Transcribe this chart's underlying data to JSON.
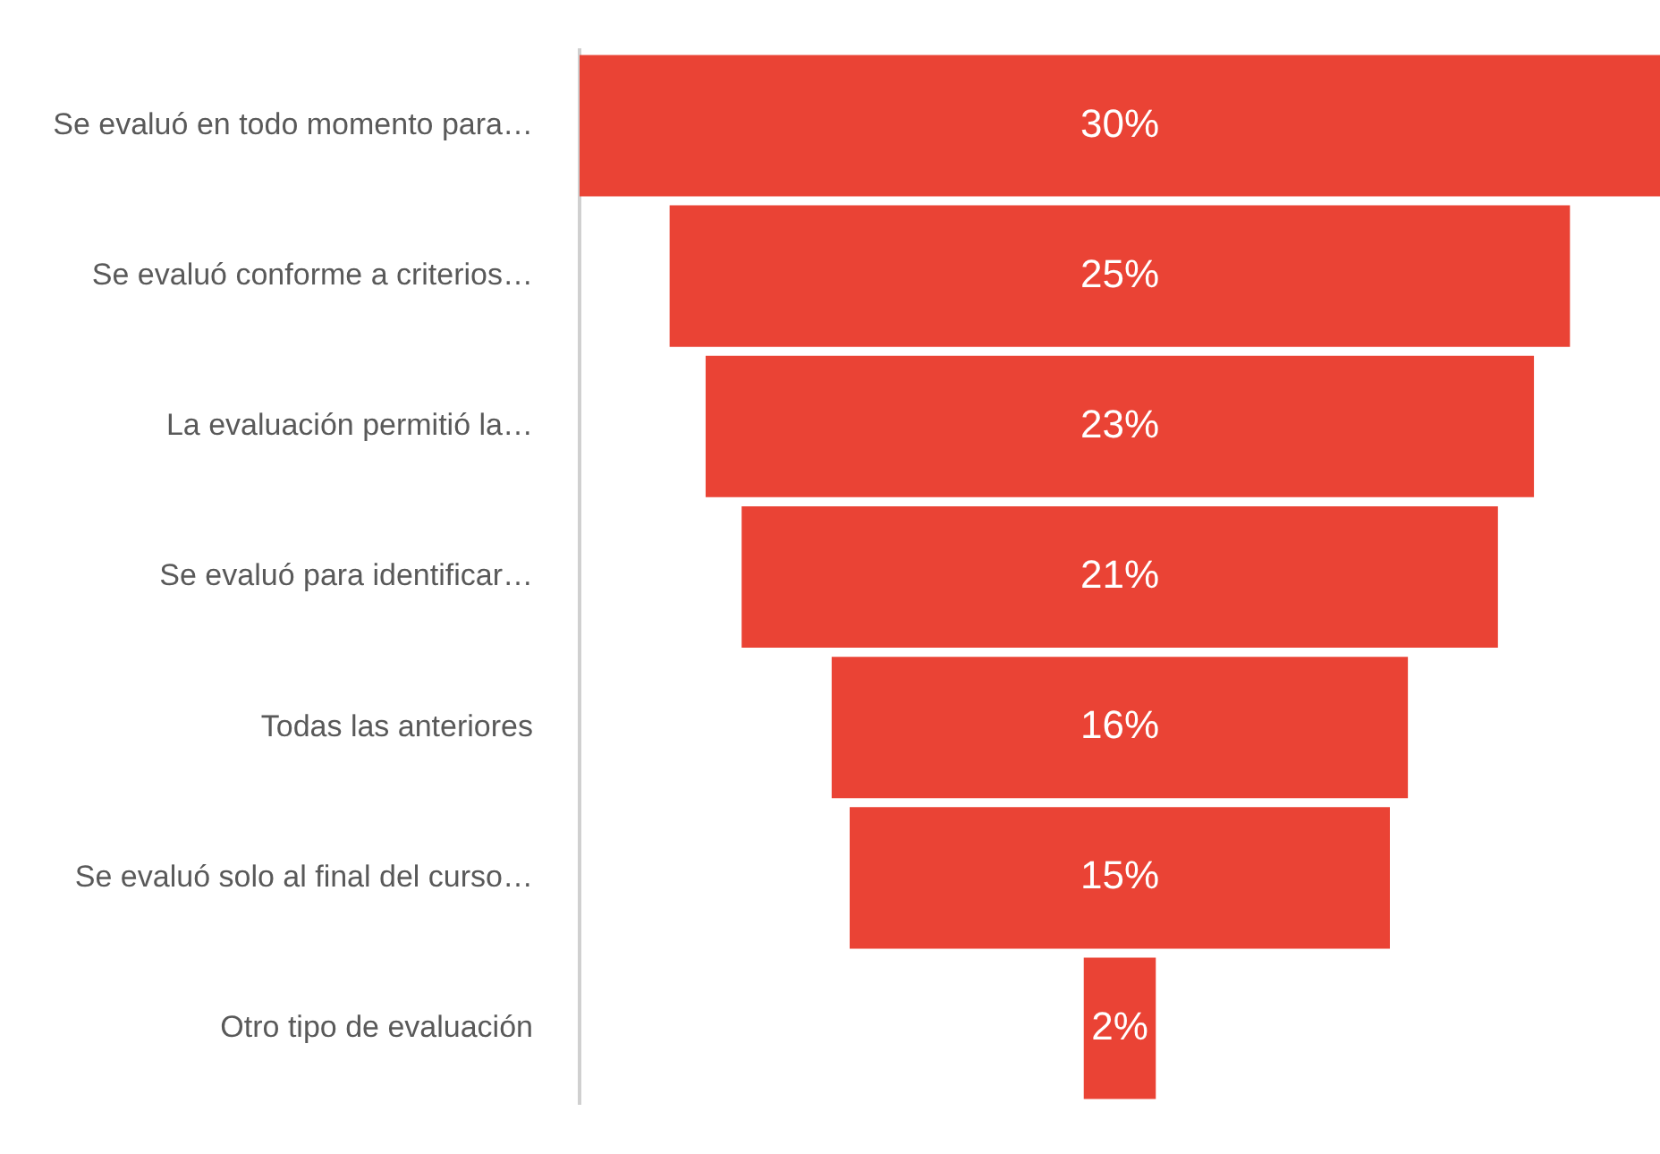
{
  "chart_data": {
    "type": "other",
    "categories": [
      "Se evaluó en todo momento para…",
      "Se evaluó conforme a criterios…",
      "La evaluación permitió la…",
      "Se evaluó para identificar…",
      "Todas las anteriores",
      "Se evaluó solo al final del curso…",
      "Otro tipo de evaluación"
    ],
    "values": [
      30,
      25,
      23,
      21,
      16,
      15,
      2
    ],
    "value_labels": [
      "30%",
      "25%",
      "23%",
      "21%",
      "16%",
      "15%",
      "2%"
    ],
    "color": "#ea4335"
  }
}
